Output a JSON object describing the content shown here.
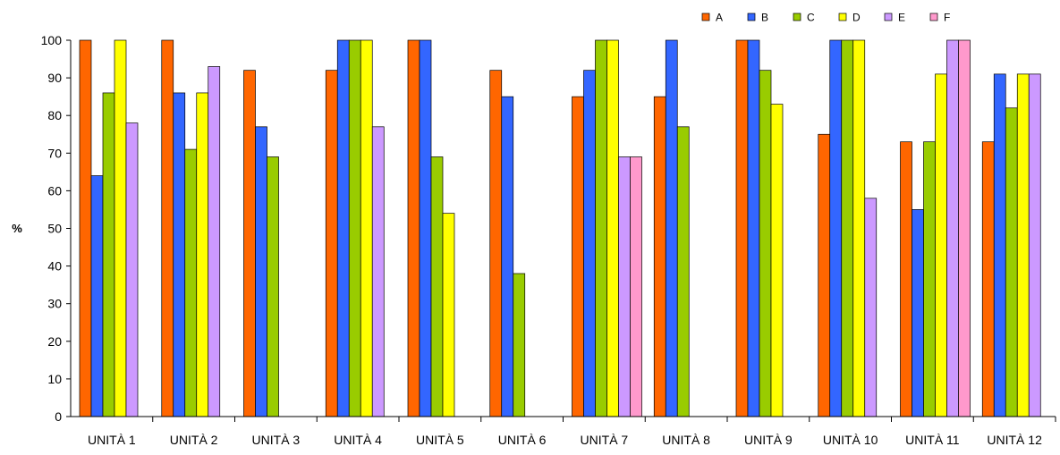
{
  "chart_data": {
    "type": "bar",
    "title": "",
    "xlabel": "",
    "ylabel": "%",
    "ylim": [
      0,
      100
    ],
    "yticks": [
      0,
      10,
      20,
      30,
      40,
      50,
      60,
      70,
      80,
      90,
      100
    ],
    "grid": false,
    "legend": "top-right",
    "categories": [
      "UNITÀ 1",
      "UNITÀ 2",
      "UNITÀ 3",
      "UNITÀ 4",
      "UNITÀ 5",
      "UNITÀ 6",
      "UNITÀ 7",
      "UNITÀ 8",
      "UNITÀ 9",
      "UNITÀ 10",
      "UNITÀ 11",
      "UNITÀ 12"
    ],
    "series": [
      {
        "name": "A",
        "color": "#ff6600",
        "values": [
          100,
          100,
          92,
          92,
          100,
          92,
          85,
          85,
          100,
          75,
          73,
          73
        ]
      },
      {
        "name": "B",
        "color": "#3366ff",
        "values": [
          64,
          86,
          77,
          100,
          100,
          85,
          92,
          100,
          100,
          100,
          55,
          91
        ]
      },
      {
        "name": "C",
        "color": "#99cc00",
        "values": [
          86,
          71,
          69,
          100,
          69,
          38,
          100,
          77,
          92,
          100,
          73,
          82
        ]
      },
      {
        "name": "D",
        "color": "#ffff00",
        "values": [
          100,
          86,
          null,
          100,
          54,
          null,
          100,
          null,
          83,
          100,
          91,
          91
        ]
      },
      {
        "name": "E",
        "color": "#cc99ff",
        "values": [
          78,
          93,
          null,
          77,
          null,
          null,
          69,
          null,
          null,
          58,
          100,
          91
        ]
      },
      {
        "name": "F",
        "color": "#ff99cc",
        "values": [
          null,
          null,
          null,
          null,
          null,
          null,
          69,
          null,
          null,
          null,
          100,
          null
        ]
      }
    ]
  }
}
